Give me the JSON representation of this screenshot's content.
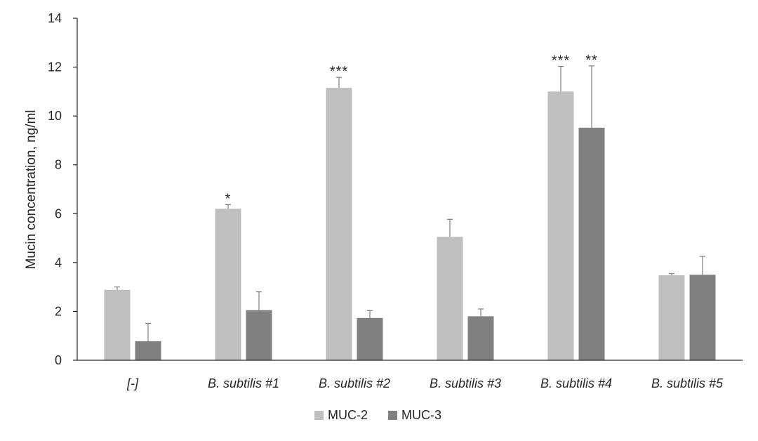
{
  "chart_data": {
    "type": "bar",
    "ylabel": "Mucin concentration, ng/ml",
    "xlabel": "",
    "title": "",
    "ylim": [
      0,
      14
    ],
    "yticks": [
      0,
      2,
      4,
      6,
      8,
      10,
      12,
      14
    ],
    "categories": [
      "[-]",
      "B. subtilis #1",
      "B. subtilis #2",
      "B. subtilis #3",
      "B. subtilis #4",
      "B. subtilis #5"
    ],
    "series": [
      {
        "name": "MUC-2",
        "color": "#bfbfbf",
        "values": [
          2.88,
          6.2,
          11.15,
          5.05,
          11.0,
          3.48
        ],
        "errors": [
          0.12,
          0.17,
          0.43,
          0.72,
          1.03,
          0.07
        ],
        "significance": [
          "",
          "*",
          "***",
          "",
          "***",
          ""
        ]
      },
      {
        "name": "MUC-3",
        "color": "#808080",
        "values": [
          0.78,
          2.05,
          1.73,
          1.8,
          9.52,
          3.5
        ],
        "errors": [
          0.73,
          0.75,
          0.3,
          0.3,
          2.53,
          0.75
        ],
        "significance": [
          "",
          "",
          "",
          "",
          "**",
          ""
        ]
      }
    ],
    "legend_position": "bottom",
    "grid": false
  }
}
